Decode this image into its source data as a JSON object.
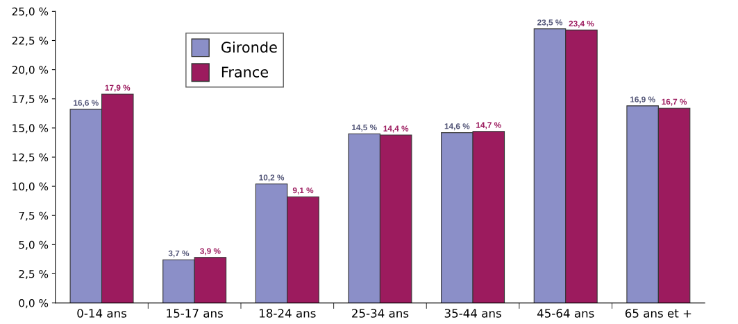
{
  "chart_data": {
    "type": "bar",
    "categories": [
      "0-14 ans",
      "15-17 ans",
      "18-24 ans",
      "25-34 ans",
      "35-44 ans",
      "45-64 ans",
      "65 ans et +"
    ],
    "series": [
      {
        "name": "Gironde",
        "color": "#8b8fc8",
        "values": [
          16.6,
          3.7,
          10.2,
          14.5,
          14.6,
          23.5,
          16.9
        ],
        "value_labels": [
          "16,6 %",
          "3,7 %",
          "10,2 %",
          "14,5 %",
          "14,6 %",
          "23,5 %",
          "16,9 %"
        ]
      },
      {
        "name": "France",
        "color": "#9c1b5e",
        "values": [
          17.9,
          3.9,
          9.1,
          14.4,
          14.7,
          23.4,
          16.7
        ],
        "value_labels": [
          "17,9 %",
          "3,9 %",
          "9,1 %",
          "14,4 %",
          "14,7 %",
          "23,4 %",
          "16,7 %"
        ]
      }
    ],
    "ylim": [
      0,
      25
    ],
    "yticks": [
      {
        "value": 0,
        "label": "0,0 %"
      },
      {
        "value": 2.5,
        "label": "2,5 %"
      },
      {
        "value": 5,
        "label": "5,0 %"
      },
      {
        "value": 7.5,
        "label": "7,5 %"
      },
      {
        "value": 10,
        "label": "10,0 %"
      },
      {
        "value": 12.5,
        "label": "12,5 %"
      },
      {
        "value": 15,
        "label": "15,0 %"
      },
      {
        "value": 17.5,
        "label": "17,5 %"
      },
      {
        "value": 20,
        "label": "20,0 %"
      },
      {
        "value": 22.5,
        "label": "22,5 %"
      },
      {
        "value": 25,
        "label": "25,0 %"
      }
    ],
    "grid": false,
    "legend": "top left"
  }
}
